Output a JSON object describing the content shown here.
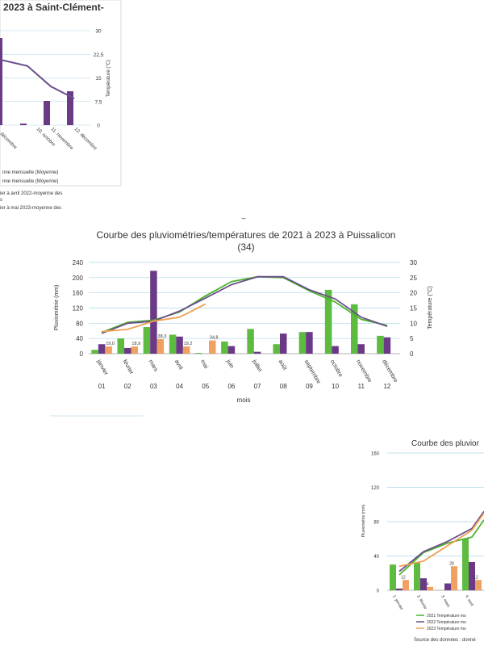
{
  "colors": {
    "green": "#5dbb3f",
    "purple": "#6b3a86",
    "orange": "#f0a060",
    "line_green": "#4cb32a",
    "line_purple": "#6b4e8c",
    "line_orange": "#f0a050",
    "grid": "#a9d8e6",
    "axis": "#999999",
    "text": "#333333"
  },
  "divider_mark": "–",
  "chart_data": [
    {
      "type": "bar",
      "title": "2023 à Saint-Clément-",
      "categories": [
        "10. octobre",
        "11. novembre",
        "12. décembre"
      ],
      "partial_category": "décembre",
      "series": [
        {
          "values": [
            25,
            7,
            12
          ]
        }
      ],
      "line_values": [
        20.8,
        18.8,
        12.3,
        8.5
      ],
      "yright_ticks": [
        "30",
        "22,5",
        "15",
        "7,5",
        "0"
      ],
      "yright_label": "Température (°C)",
      "ylim_right": [
        0,
        30
      ],
      "legend": [
        "nne mensuelle (Moyenne)",
        "nne mensuelle (Moyenne)",
        "ier à avril 2022-moyenne des",
        "s",
        "ier à mai 2023-moyenne des"
      ]
    },
    {
      "type": "bar",
      "title_line1": "Courbe des pluviométries/températures de 2021 à 2023 à Puissalicon",
      "title_line2": "(34)",
      "categories": [
        "janvier",
        "février",
        "mars",
        "avril",
        "mai",
        "juin",
        "juillet",
        "août",
        "septembre",
        "octobre",
        "novembre",
        "décembre"
      ],
      "month_numbers": [
        "01",
        "02",
        "03",
        "04",
        "05",
        "06",
        "07",
        "08",
        "09",
        "10",
        "11",
        "12"
      ],
      "xlabel": "mois",
      "ylabel_left": "Pluviométrie (mm)",
      "ylabel_right": "Température (°C)",
      "yleft_ticks": [
        "240",
        "200",
        "160",
        "120",
        "80",
        "40",
        "0"
      ],
      "yright_ticks": [
        "30",
        "25",
        "20",
        "15",
        "10",
        "5",
        "0"
      ],
      "ylim_left": [
        0,
        240
      ],
      "ylim_right": [
        0,
        30
      ],
      "grid": true,
      "series": [
        {
          "values": [
            10,
            40,
            70,
            50,
            2,
            32,
            65,
            25,
            57,
            168,
            130,
            47
          ]
        },
        {
          "values": [
            25,
            15,
            218,
            45,
            0,
            20,
            5,
            53,
            57,
            20,
            25,
            43
          ]
        },
        {
          "values": [
            19,
            18.9,
            38.3,
            19.2,
            34.8,
            null,
            null,
            null,
            null,
            null,
            null,
            null
          ]
        }
      ],
      "data_labels": [
        "19,0",
        "18,9",
        "38,3",
        "19,2",
        "34,8"
      ],
      "lines": [
        {
          "values": [
            7.0,
            10.3,
            11.0,
            13.7,
            19.0,
            23.7,
            25.3,
            25.0,
            20.7,
            17.0,
            11.3,
            9.3
          ]
        },
        {
          "values": [
            6.7,
            10.0,
            10.7,
            14.0,
            18.3,
            22.7,
            25.3,
            25.3,
            21.0,
            18.0,
            12.0,
            9.0
          ]
        },
        {
          "values": [
            7.3,
            8.0,
            10.7,
            12.0,
            16.3,
            null,
            null,
            null,
            null,
            null,
            null,
            null
          ]
        }
      ]
    },
    {
      "type": "bar",
      "title": "Courbe des pluvior",
      "ylabel": "Pluviométrie (mm)",
      "yleft_ticks": [
        "160",
        "120",
        "80",
        "40",
        "0"
      ],
      "ylim_left": [
        0,
        160
      ],
      "categories": [
        "1. janvier",
        "2. février",
        "3. mars",
        "4. avril"
      ],
      "series": [
        {
          "values": [
            30,
            32,
            0,
            60
          ]
        },
        {
          "values": [
            2,
            14,
            8,
            33
          ]
        },
        {
          "values": [
            12,
            4,
            28,
            12
          ]
        }
      ],
      "data_labels": [
        "12",
        "4",
        "28",
        "12"
      ],
      "lines": [
        {
          "values": [
            18,
            44,
            55,
            62
          ]
        },
        {
          "values": [
            22,
            45,
            57,
            72
          ]
        },
        {
          "values": [
            28,
            34,
            52,
            70
          ]
        }
      ],
      "legend": [
        "2021 Température mo",
        "2022 Température mo",
        "2023 Température mo"
      ],
      "source": "Source des données : donné"
    }
  ]
}
